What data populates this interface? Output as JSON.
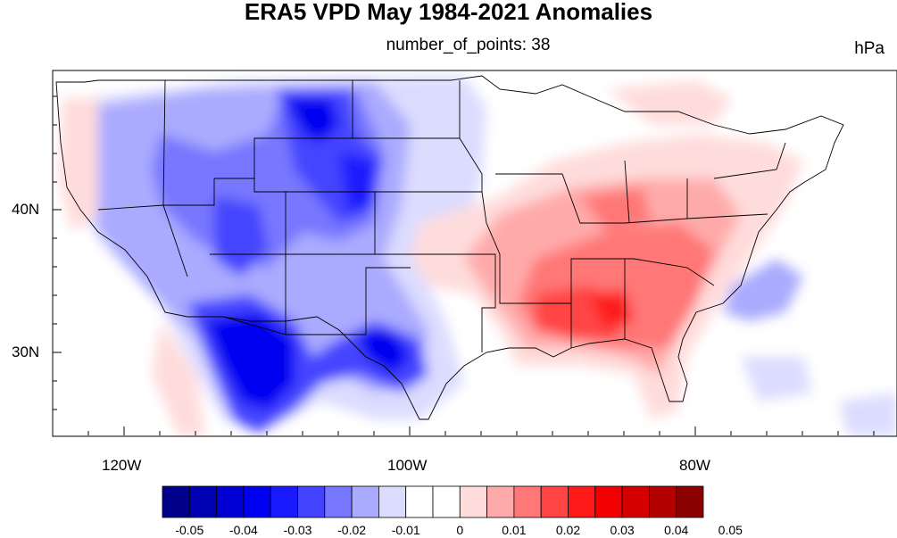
{
  "figure": {
    "title": "ERA5 VPD May 1984-2021 Anomalies",
    "subtitle": "number_of_points: 38",
    "units": "hPa"
  },
  "map": {
    "lon_labels": [
      "120W",
      "100W",
      "80W"
    ],
    "lat_labels": [
      "40N",
      "30N"
    ]
  },
  "colorbar": {
    "colors": [
      "#00008b",
      "#0000b3",
      "#0000d4",
      "#0000f0",
      "#1a1aff",
      "#4444ff",
      "#7777ff",
      "#aaaaff",
      "#dcdcff",
      "#ffffff",
      "#ffffff",
      "#ffdcdc",
      "#ffaaaa",
      "#ff7777",
      "#ff4444",
      "#ff1a1a",
      "#f00000",
      "#d40000",
      "#b30000",
      "#8b0000"
    ],
    "labels": [
      "-0.05",
      "-0.04",
      "-0.03",
      "-0.02",
      "-0.01",
      "0",
      "0.01",
      "0.02",
      "0.03",
      "0.04",
      "0.05"
    ]
  },
  "colors": {
    "strong_negative": "#1e1eff",
    "negative": "#7777ff",
    "weak_negative": "#dcdcff",
    "weak_positive": "#ffdcdc",
    "positive": "#ff7777",
    "strong_positive": "#ff1a1a"
  }
}
